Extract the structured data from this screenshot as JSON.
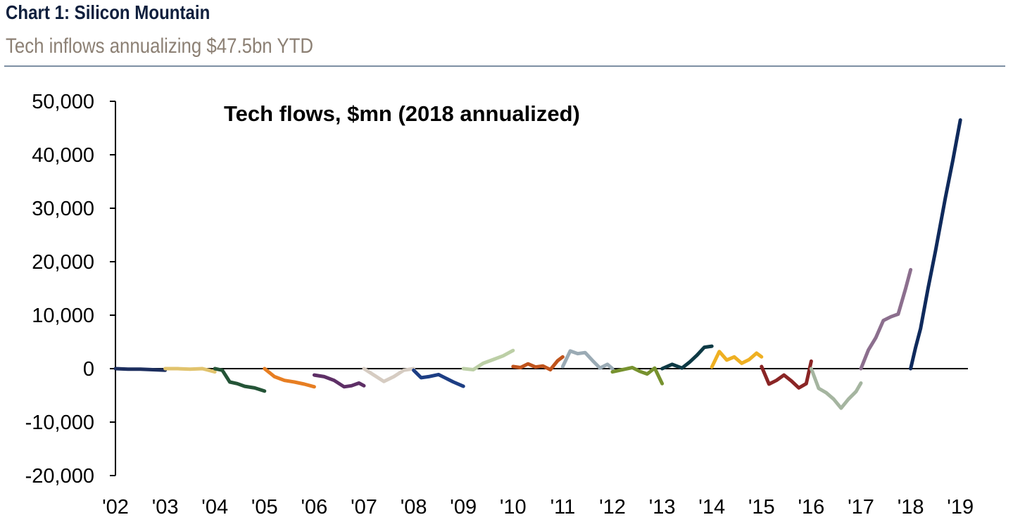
{
  "header": {
    "title": "Chart 1: Silicon Mountain",
    "subtitle": "Tech inflows annualizing $47.5bn YTD"
  },
  "chart_data": {
    "type": "line",
    "title": "Tech flows, $mn (2018 annualized)",
    "xlabel": "",
    "ylabel": "",
    "ylim": [
      -20000,
      50000
    ],
    "xlim": [
      2002,
      2019
    ],
    "y_ticks": [
      50000,
      40000,
      30000,
      20000,
      10000,
      0,
      -10000,
      -20000
    ],
    "y_tick_labels": [
      "50,000",
      "40,000",
      "30,000",
      "20,000",
      "10,000",
      "0",
      "-10,000",
      "-20,000"
    ],
    "x_ticks": [
      2002,
      2003,
      2004,
      2005,
      2006,
      2007,
      2008,
      2009,
      2010,
      2011,
      2012,
      2013,
      2014,
      2015,
      2016,
      2017,
      2018,
      2019
    ],
    "x_tick_labels": [
      "'02",
      "'03",
      "'04",
      "'05",
      "'06",
      "'07",
      "'08",
      "'09",
      "'10",
      "'11",
      "'12",
      "'13",
      "'14",
      "'15",
      "'16",
      "'17",
      "'18",
      "'19"
    ],
    "series": [
      {
        "name": "2002",
        "color": "#1c2e5e",
        "x": [
          0,
          0.25,
          0.5,
          0.75,
          1.0
        ],
        "values": [
          0,
          -100,
          -100,
          -200,
          -300
        ]
      },
      {
        "name": "2003",
        "color": "#e1c36d",
        "x": [
          0,
          0.25,
          0.5,
          0.75,
          1.0
        ],
        "values": [
          0,
          0,
          -100,
          0,
          -600
        ]
      },
      {
        "name": "2004",
        "color": "#245437",
        "x": [
          0,
          0.15,
          0.3,
          0.45,
          0.6,
          0.8,
          1.0
        ],
        "values": [
          0,
          -300,
          -2500,
          -2800,
          -3300,
          -3600,
          -4200
        ]
      },
      {
        "name": "2005",
        "color": "#e77e22",
        "x": [
          0,
          0.2,
          0.4,
          0.6,
          0.8,
          1.0
        ],
        "values": [
          0,
          -1500,
          -2200,
          -2500,
          -2900,
          -3400
        ]
      },
      {
        "name": "2006",
        "color": "#5e2f66",
        "x": [
          0,
          0.2,
          0.4,
          0.6,
          0.75,
          0.9,
          1.0
        ],
        "values": [
          -1200,
          -1500,
          -2200,
          -3400,
          -3200,
          -2700,
          -3200
        ]
      },
      {
        "name": "2007",
        "color": "#d6ccc2",
        "x": [
          0,
          0.2,
          0.4,
          0.6,
          0.8,
          1.0
        ],
        "values": [
          0,
          -1200,
          -2400,
          -1500,
          -300,
          0
        ]
      },
      {
        "name": "2008",
        "color": "#1d3e84",
        "x": [
          0,
          0.15,
          0.3,
          0.5,
          0.65,
          0.8,
          1.0
        ],
        "values": [
          -300,
          -1700,
          -1500,
          -1100,
          -1800,
          -2500,
          -3300
        ]
      },
      {
        "name": "2009",
        "color": "#bccfa6",
        "x": [
          0,
          0.2,
          0.4,
          0.6,
          0.8,
          1.0
        ],
        "values": [
          0,
          -200,
          1000,
          1700,
          2400,
          3400
        ]
      },
      {
        "name": "2010",
        "color": "#c0541c",
        "x": [
          0,
          0.15,
          0.3,
          0.45,
          0.6,
          0.75,
          0.9,
          1.0
        ],
        "values": [
          400,
          200,
          900,
          300,
          500,
          -200,
          1500,
          2200
        ]
      },
      {
        "name": "2011",
        "color": "#9babb5",
        "x": [
          0,
          0.15,
          0.3,
          0.45,
          0.6,
          0.75,
          0.9,
          1.0
        ],
        "values": [
          400,
          3300,
          2800,
          3000,
          1500,
          100,
          800,
          0
        ]
      },
      {
        "name": "2012",
        "color": "#77922f",
        "x": [
          0,
          0.2,
          0.4,
          0.55,
          0.7,
          0.85,
          1.0
        ],
        "values": [
          -600,
          -200,
          200,
          -500,
          -1000,
          100,
          -2800
        ]
      },
      {
        "name": "2013",
        "color": "#0e3a45",
        "x": [
          0,
          0.2,
          0.4,
          0.55,
          0.7,
          0.85,
          1.0
        ],
        "values": [
          0,
          800,
          100,
          1200,
          2500,
          4000,
          4200
        ]
      },
      {
        "name": "2014",
        "color": "#efb022",
        "x": [
          0,
          0.15,
          0.3,
          0.45,
          0.6,
          0.75,
          0.9,
          1.0
        ],
        "values": [
          300,
          3200,
          1600,
          2200,
          1000,
          1700,
          2900,
          2200
        ]
      },
      {
        "name": "2015",
        "color": "#8a2525",
        "x": [
          0,
          0.15,
          0.3,
          0.45,
          0.6,
          0.75,
          0.9,
          1.0
        ],
        "values": [
          400,
          -2900,
          -2200,
          -1200,
          -2300,
          -3600,
          -2800,
          1400
        ]
      },
      {
        "name": "2016",
        "color": "#a5b5a0",
        "x": [
          0,
          0.15,
          0.3,
          0.45,
          0.6,
          0.75,
          0.9,
          1.0
        ],
        "values": [
          0,
          -3700,
          -4500,
          -5700,
          -7400,
          -5700,
          -4300,
          -2700
        ]
      },
      {
        "name": "2017",
        "color": "#8c6f8e",
        "x": [
          0,
          0.15,
          0.3,
          0.45,
          0.6,
          0.75,
          0.9,
          1.0
        ],
        "values": [
          0,
          3500,
          5800,
          9000,
          9700,
          10200,
          15000,
          18500
        ]
      },
      {
        "name": "2018",
        "color": "#0f2a5c",
        "x": [
          0,
          0.1,
          0.2,
          0.35,
          0.5,
          0.7,
          0.85,
          1.0
        ],
        "values": [
          0,
          4000,
          7500,
          15000,
          22000,
          32000,
          39000,
          46500
        ]
      }
    ]
  }
}
